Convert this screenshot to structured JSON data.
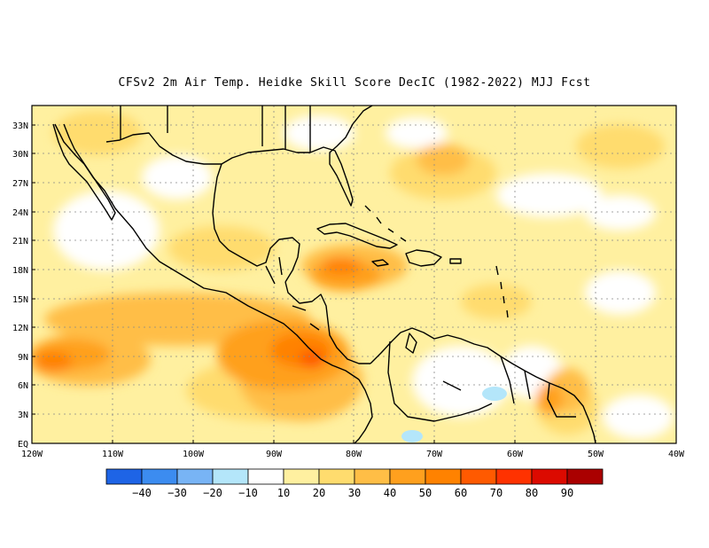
{
  "title": "CFSv2  2m Air Temp. Heidke Skill Score DecIC (1982-2022) MJJ Fcst",
  "lat_labels": [
    "33N",
    "30N",
    "27N",
    "24N",
    "21N",
    "18N",
    "15N",
    "12N",
    "9N",
    "6N",
    "3N",
    "EQ"
  ],
  "lon_labels": [
    "120W",
    "110W",
    "100W",
    "90W",
    "80W",
    "70W",
    "60W",
    "50W",
    "40W"
  ],
  "colorbar": {
    "colors": [
      "#1e64e6",
      "#3c8cf0",
      "#78b4f5",
      "#b4e6fa",
      "#ffffff",
      "#fff0a0",
      "#ffdc6e",
      "#ffbe46",
      "#ffa01e",
      "#ff8200",
      "#ff5a00",
      "#ff3200",
      "#dc0a00",
      "#aa0000"
    ],
    "labels": [
      "-40",
      "-30",
      "-20",
      "-10",
      "10",
      "20",
      "30",
      "40",
      "50",
      "60",
      "70",
      "80",
      "90"
    ]
  }
}
